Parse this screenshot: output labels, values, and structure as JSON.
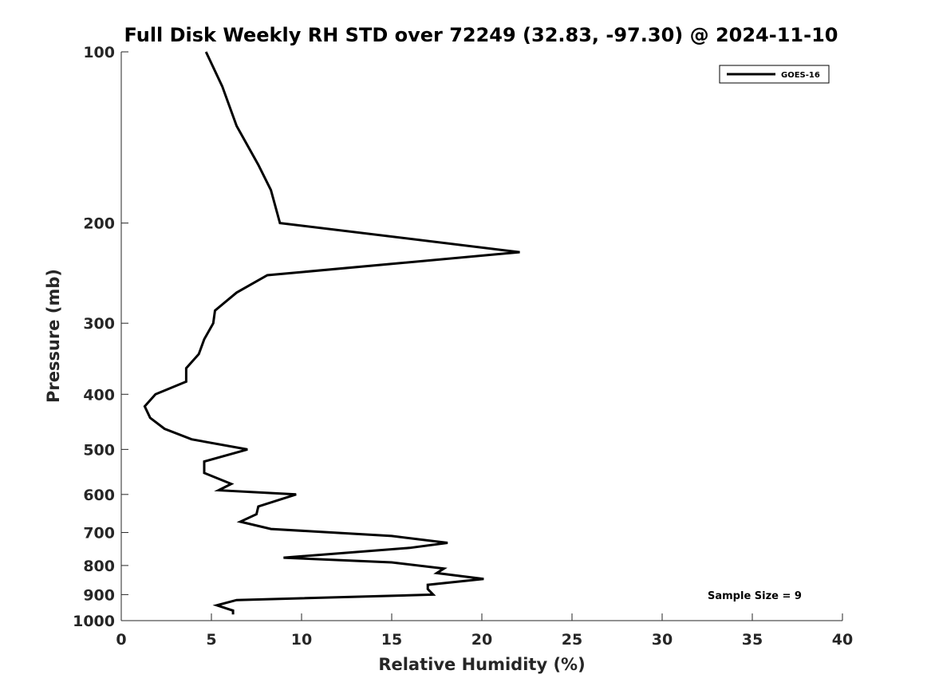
{
  "chart_data": {
    "type": "line",
    "title": "Full Disk Weekly RH STD over 72249 (32.83, -97.30) @ 2024-11-10",
    "xlabel": "Relative Humidity (%)",
    "ylabel": "Pressure (mb)",
    "xlim": [
      0,
      40
    ],
    "ylim": [
      100,
      1000
    ],
    "yscale": "log",
    "y_reversed": true,
    "x_ticks": [
      0,
      5,
      10,
      15,
      20,
      25,
      30,
      35,
      40
    ],
    "x_tick_labels": [
      "0",
      "5",
      "10",
      "15",
      "20",
      "25",
      "30",
      "35",
      "40"
    ],
    "y_ticks": [
      100,
      200,
      300,
      400,
      500,
      600,
      700,
      800,
      900,
      1000
    ],
    "y_tick_labels": [
      "100",
      "200",
      "300",
      "400",
      "500",
      "600",
      "700",
      "800",
      "900",
      "1000"
    ],
    "grid": false,
    "legend": {
      "position": "top-right",
      "entries": [
        "GOES-16"
      ]
    },
    "annotation": "Sample Size = 9",
    "line_color": "#000000",
    "series": [
      {
        "name": "GOES-16",
        "x": [
          4.7,
          5.6,
          6.4,
          7.6,
          8.3,
          8.8,
          22.1,
          8.1,
          6.4,
          5.2,
          5.1,
          4.6,
          4.3,
          3.6,
          3.6,
          1.9,
          1.3,
          1.6,
          2.4,
          3.9,
          7.0,
          4.6,
          4.6,
          6.1,
          5.4,
          9.7,
          7.6,
          7.5,
          6.6,
          8.3,
          15.0,
          18.1,
          16.0,
          9.0,
          15.0,
          17.9,
          17.5,
          20.1,
          17.0,
          17.0,
          17.3,
          6.4,
          5.3,
          6.2,
          6.2
        ],
        "y": [
          100,
          115,
          135,
          158,
          175,
          200,
          225,
          247,
          265,
          285,
          300,
          320,
          340,
          360,
          380,
          400,
          420,
          440,
          460,
          480,
          500,
          525,
          550,
          575,
          590,
          600,
          630,
          650,
          670,
          690,
          710,
          730,
          745,
          775,
          790,
          810,
          825,
          845,
          865,
          880,
          900,
          920,
          940,
          960,
          975
        ]
      }
    ]
  }
}
